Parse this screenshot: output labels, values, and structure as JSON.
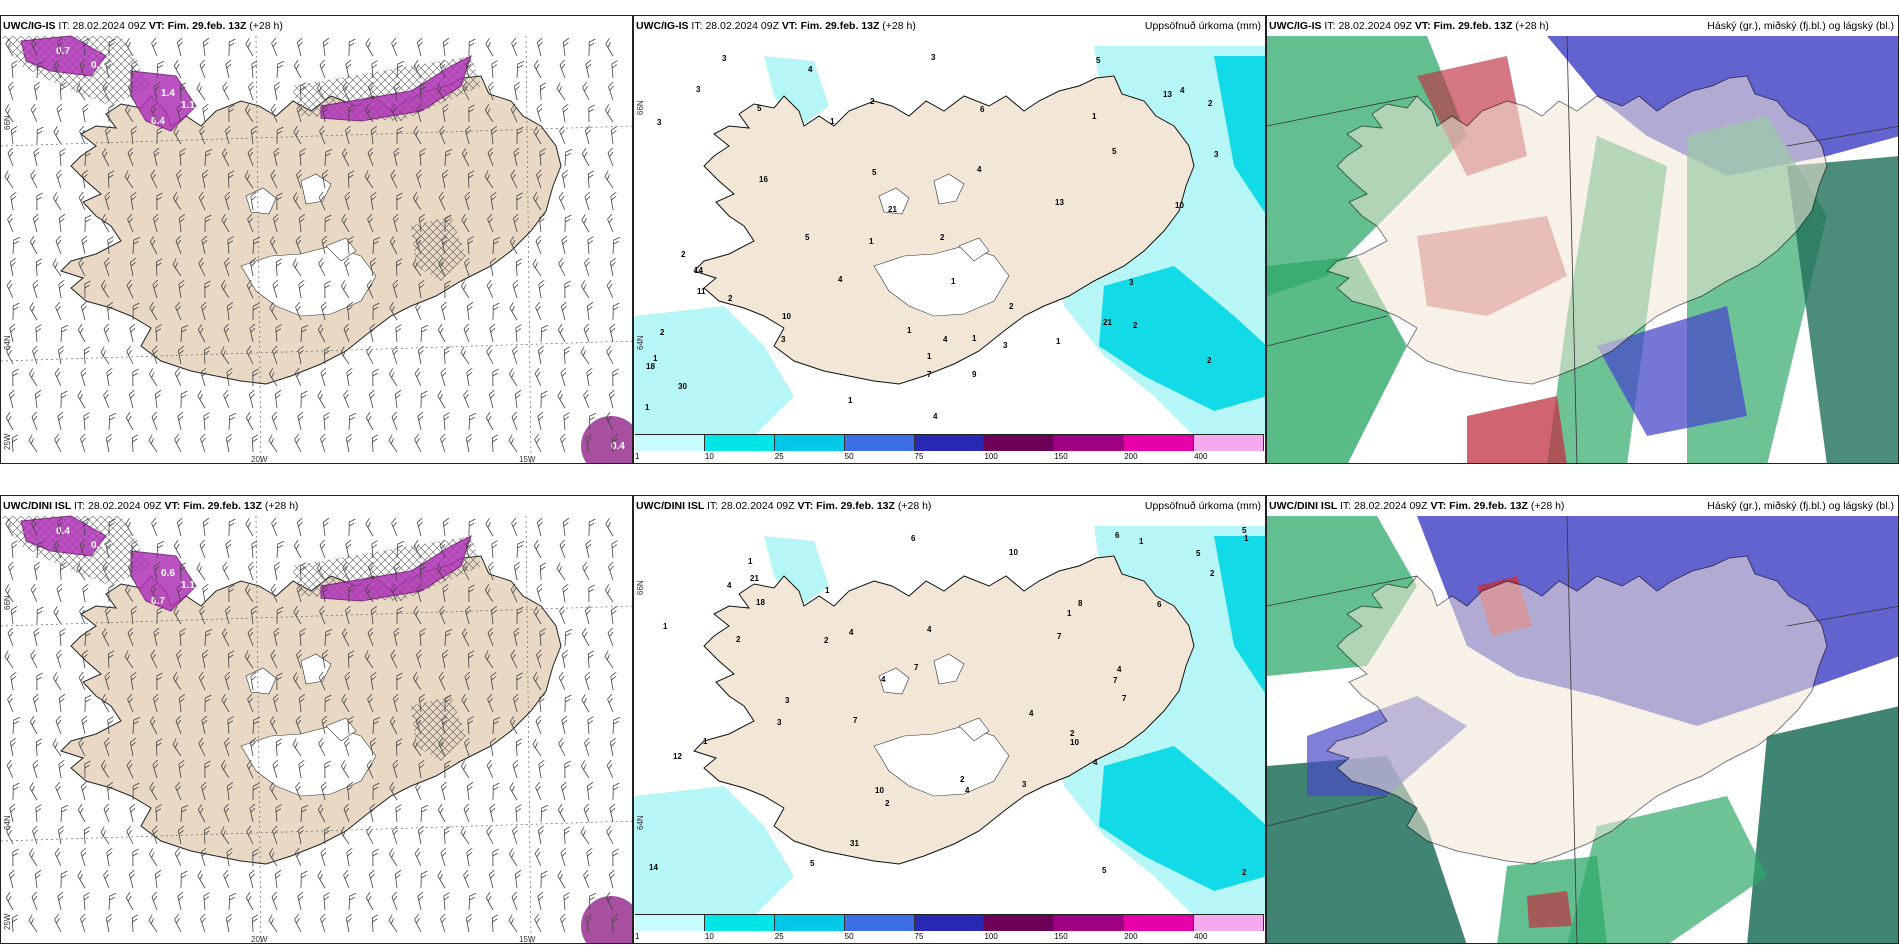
{
  "panels": [
    {
      "id": "p1",
      "model": "UWC/IG-IS",
      "it_label": "IT:",
      "it_value": "28.02.2024 09Z",
      "vt_label": "VT:",
      "vt_value": "Fim. 29.feb. 13Z",
      "lead": "(+28 h)",
      "right_title": "",
      "type": "wind",
      "lat_labels": [
        "66N",
        "64N",
        "25W"
      ],
      "lon_labels": [
        "20W",
        "15W"
      ],
      "values": [
        "0.7",
        "0.4",
        "1.4",
        "1.1",
        "0.4",
        "0.4"
      ]
    },
    {
      "id": "p2",
      "model": "UWC/IG-IS",
      "it_label": "IT:",
      "it_value": "28.02.2024 09Z",
      "vt_label": "VT:",
      "vt_value": "Fim. 29.feb. 13Z",
      "lead": "(+28 h)",
      "right_title": "Uppsöfnuð úrkoma (mm)",
      "type": "precip",
      "lat_labels": [
        "66N",
        "64N"
      ],
      "numbers": [
        "5",
        "2",
        "1",
        "1",
        "3",
        "2",
        "1",
        "3",
        "1",
        "2",
        "4",
        "2",
        "10",
        "1",
        "1",
        "1",
        "5",
        "1",
        "2",
        "2",
        "1",
        "1",
        "4",
        "3",
        "3",
        "2",
        "3",
        "10",
        "14",
        "21",
        "21",
        "18",
        "16",
        "13",
        "3",
        "7",
        "3",
        "4",
        "2",
        "5",
        "4",
        "30",
        "13",
        "11",
        "9",
        "6",
        "5",
        "4",
        "4",
        "5",
        "1",
        "2",
        "3"
      ]
    },
    {
      "id": "p3",
      "model": "UWC/IG-IS",
      "it_label": "IT:",
      "it_value": "28.02.2024 09Z",
      "vt_label": "VT:",
      "vt_value": "Fim. 29.feb. 13Z",
      "lead": "(+28 h)",
      "right_title": "Háský (gr.), miðský (fj.bl.) og lágský (bl.)",
      "type": "clouds"
    },
    {
      "id": "p4",
      "model": "UWC/DINI ISL",
      "it_label": "IT:",
      "it_value": "28.02.2024 09Z",
      "vt_label": "VT:",
      "vt_value": "Fim. 29.feb. 13Z",
      "lead": "(+28 h)",
      "right_title": "",
      "type": "wind",
      "lat_labels": [
        "66N",
        "64N",
        "25W"
      ],
      "lon_labels": [
        "20W",
        "15W"
      ],
      "values": [
        "0.4",
        "0.4",
        "0.6",
        "1.1",
        "0.7"
      ]
    },
    {
      "id": "p5",
      "model": "UWC/DINI ISL",
      "it_label": "IT:",
      "it_value": "28.02.2024 09Z",
      "vt_label": "VT:",
      "vt_value": "Fim. 29.feb. 13Z",
      "lead": "(+28 h)",
      "right_title": "Uppsöfnuð úrkoma (mm)",
      "type": "precip",
      "lat_labels": [
        "66N",
        "64N"
      ],
      "numbers": [
        "2",
        "7",
        "3",
        "3",
        "4",
        "4",
        "6",
        "4",
        "1",
        "3",
        "2",
        "2",
        "1",
        "2",
        "2",
        "2",
        "1",
        "1",
        "6",
        "8",
        "4",
        "10",
        "5",
        "5",
        "4",
        "1",
        "2",
        "1",
        "12",
        "21",
        "4",
        "31",
        "18",
        "10",
        "14",
        "7",
        "7",
        "4",
        "4",
        "6",
        "7",
        "5",
        "5",
        "10",
        "7",
        "1"
      ]
    },
    {
      "id": "p6",
      "model": "UWC/DINI ISL",
      "it_label": "IT:",
      "it_value": "28.02.2024 09Z",
      "vt_label": "VT:",
      "vt_value": "Fim. 29.feb. 13Z",
      "lead": "(+28 h)",
      "right_title": "Háský (gr.), miðský (fj.bl.) og lágský (bl.)",
      "type": "clouds"
    }
  ],
  "colorbar": {
    "labels": [
      "1",
      "10",
      "25",
      "50",
      "75",
      "100",
      "150",
      "200",
      "400"
    ],
    "colors": [
      "#c8fbfb",
      "#00e6e6",
      "#00c8e6",
      "#3c6ee6",
      "#2828b4",
      "#6e005a",
      "#a00082",
      "#e600aa",
      "#f5aaf0"
    ]
  },
  "colors": {
    "land": "#f2e6d6",
    "land_wind": "#e8d8c4",
    "precip_light": "#aff5f5",
    "precip_mid": "#00d8e6",
    "cloud_high_green": "#2faa6a",
    "cloud_mid_blue": "#4848c8",
    "cloud_low_red": "#c03040"
  }
}
